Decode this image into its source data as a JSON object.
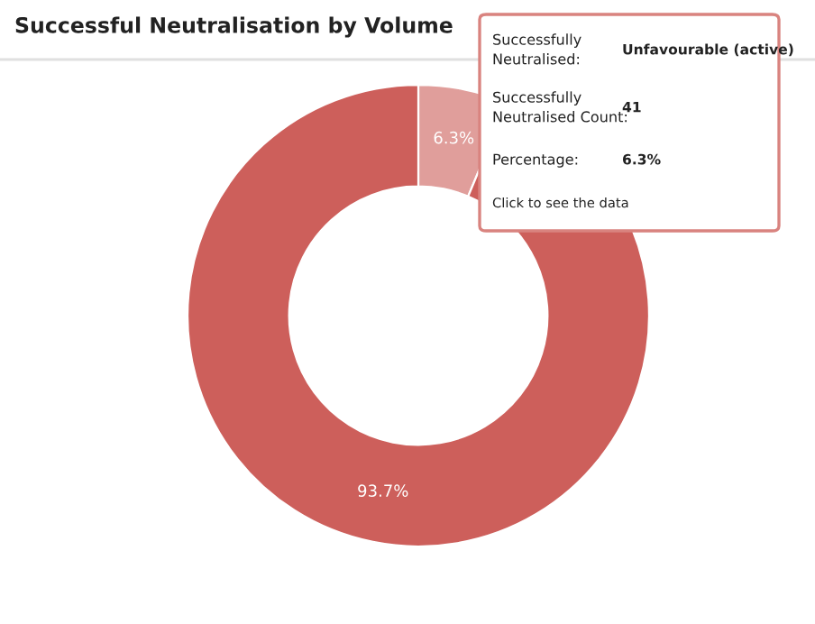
{
  "chart_data": {
    "type": "donut",
    "title": "Successful Neutralisation by Volume",
    "categories": [
      null,
      null
    ],
    "values": [
      6.3,
      93.7
    ],
    "colors": [
      "#e09e9b",
      "#cd5f5b"
    ],
    "value_labels": [
      "6.3%",
      "93.7%"
    ],
    "legend": false,
    "annotations": [
      "Successfully\nNeutralised:",
      "Unfavourable (active)",
      "Successfully\nNeutralised Count:",
      "41",
      "Percentage:",
      "6.3%",
      "Click to see the data"
    ]
  }
}
